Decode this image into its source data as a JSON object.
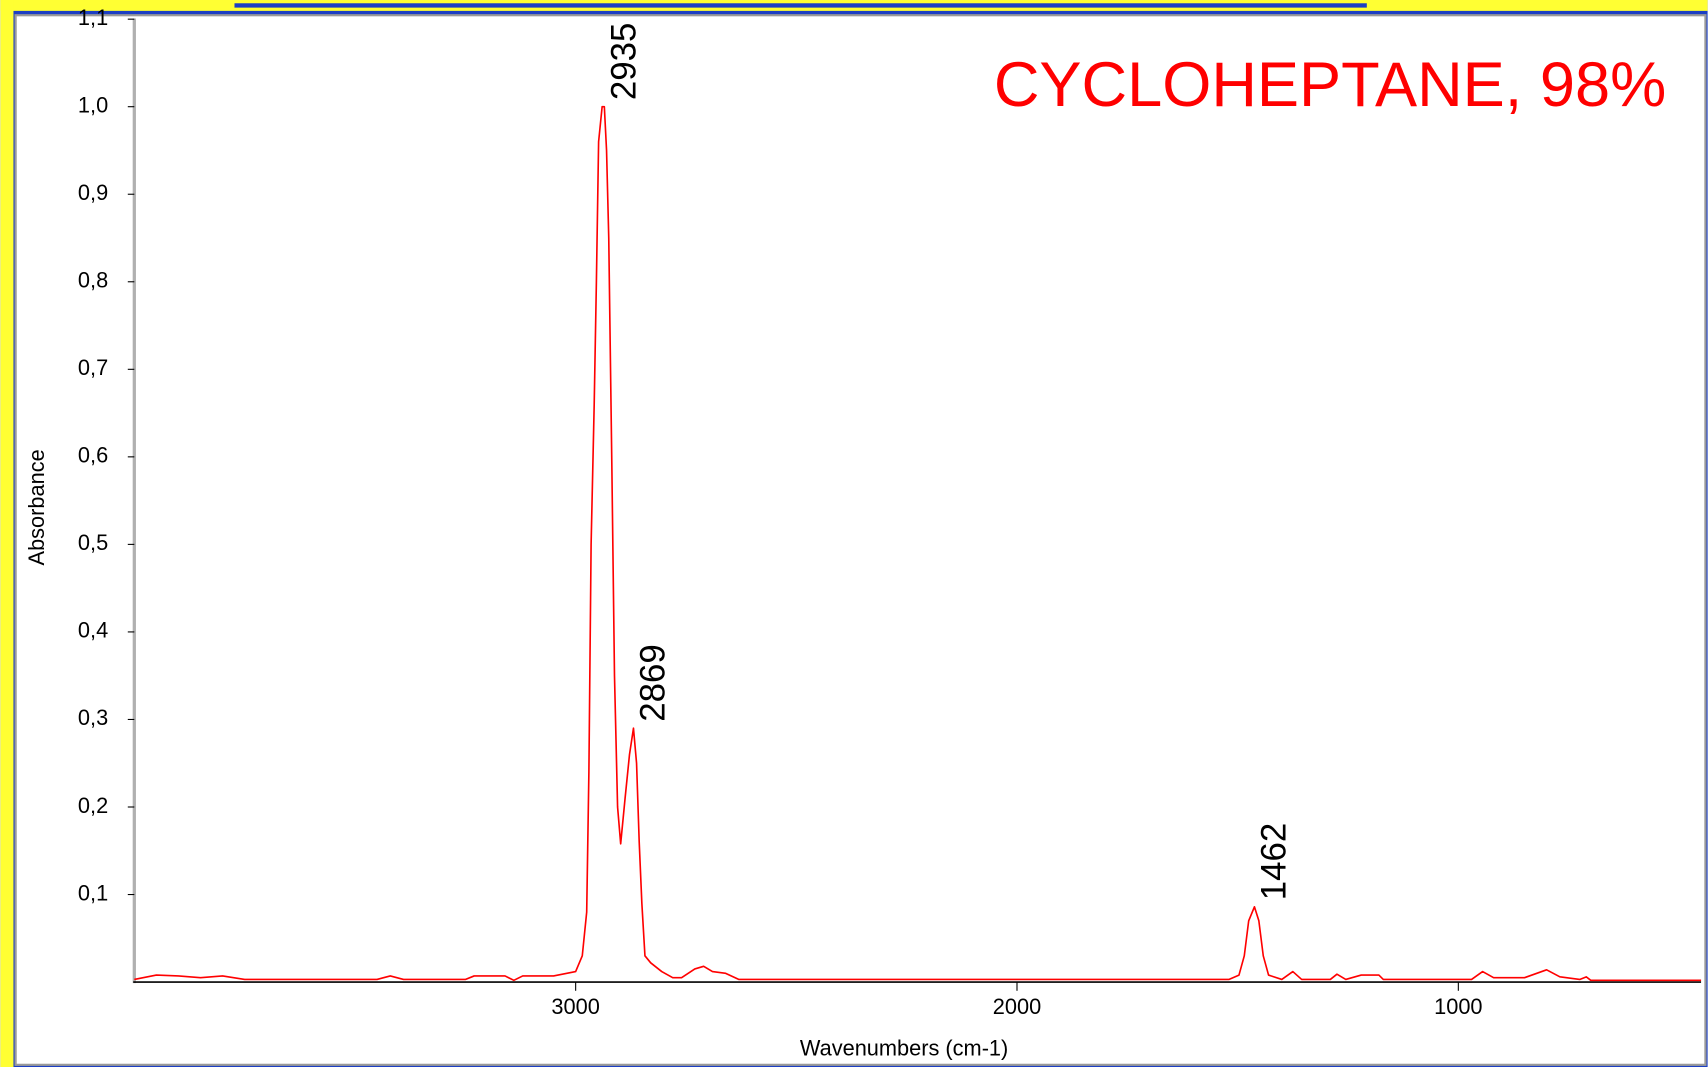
{
  "chart_data": {
    "type": "line",
    "title": "CYCLOHEPTANE, 98%",
    "xlabel": "Wavenumbers (cm-1)",
    "ylabel": "Absorbance",
    "color": "#ff0000",
    "x": [
      4000,
      3950,
      3900,
      3850,
      3800,
      3750,
      3450,
      3420,
      3390,
      3250,
      3230,
      3160,
      3140,
      3120,
      3050,
      3020,
      3000,
      2985,
      2975,
      2970,
      2965,
      2958,
      2953,
      2948,
      2940,
      2935,
      2930,
      2925,
      2918,
      2912,
      2905,
      2898,
      2888,
      2878,
      2869,
      2862,
      2856,
      2850,
      2843,
      2830,
      2805,
      2780,
      2760,
      2730,
      2710,
      2690,
      2660,
      2630,
      1520,
      1497,
      1485,
      1475,
      1462,
      1452,
      1442,
      1430,
      1400,
      1375,
      1355,
      1290,
      1275,
      1255,
      1220,
      1180,
      1170,
      970,
      945,
      920,
      850,
      800,
      770,
      725,
      710,
      700,
      450
    ],
    "values": [
      0.003,
      0.008,
      0.007,
      0.005,
      0.007,
      0.003,
      0.003,
      0.007,
      0.003,
      0.003,
      0.007,
      0.007,
      0.002,
      0.007,
      0.007,
      0.01,
      0.012,
      0.03,
      0.08,
      0.24,
      0.5,
      0.66,
      0.8,
      0.96,
      1.0,
      1.0,
      0.95,
      0.85,
      0.59,
      0.35,
      0.2,
      0.158,
      0.21,
      0.26,
      0.29,
      0.25,
      0.16,
      0.09,
      0.03,
      0.022,
      0.012,
      0.005,
      0.005,
      0.015,
      0.018,
      0.012,
      0.01,
      0.003,
      0.003,
      0.008,
      0.03,
      0.07,
      0.086,
      0.07,
      0.03,
      0.008,
      0.003,
      0.012,
      0.003,
      0.003,
      0.009,
      0.003,
      0.008,
      0.008,
      0.003,
      0.003,
      0.012,
      0.005,
      0.005,
      0.014,
      0.006,
      0.003,
      0.006,
      0.002,
      0.002
    ],
    "xlim": [
      4000,
      450
    ],
    "ylim": [
      0,
      1.1
    ],
    "xticks": [
      3000,
      2000,
      1000
    ],
    "yticks": [
      {
        "value": 0.1,
        "label": "0,1"
      },
      {
        "value": 0.2,
        "label": "0,2"
      },
      {
        "value": 0.3,
        "label": "0,3"
      },
      {
        "value": 0.4,
        "label": "0,4"
      },
      {
        "value": 0.5,
        "label": "0,5"
      },
      {
        "value": 0.6,
        "label": "0,6"
      },
      {
        "value": 0.7,
        "label": "0,7"
      },
      {
        "value": 0.8,
        "label": "0,8"
      },
      {
        "value": 0.9,
        "label": "0,9"
      },
      {
        "value": 1.0,
        "label": "1,0"
      },
      {
        "value": 1.1,
        "label": "1,1"
      }
    ],
    "annotations": [
      {
        "x": 2935,
        "y": 1.0
      },
      {
        "x": 2869,
        "y": 0.29
      },
      {
        "x": 1462,
        "y": 0.086
      }
    ]
  }
}
